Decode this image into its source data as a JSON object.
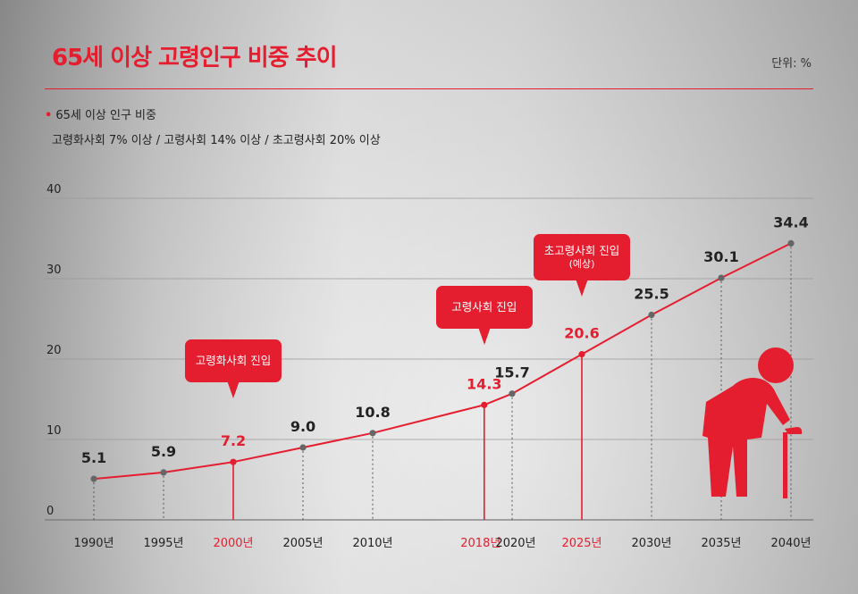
{
  "header": {
    "title": "65세 이상 고령인구 비중 추이",
    "unit": "단위: %"
  },
  "legend": {
    "bullet": "•",
    "label": "65세 이상 인구 비중",
    "note": "고령화사회 7% 이상 / 고령사회 14% 이상 / 초고령사회 20% 이상"
  },
  "callouts": [
    {
      "title": "고령화사회 진입",
      "note": ""
    },
    {
      "title": "고령사회 진입",
      "note": ""
    },
    {
      "title": "초고령사회 진입",
      "note": "(예상)"
    }
  ],
  "colors": {
    "accent": "#e41e2f",
    "line": "#e41e2f",
    "point": "#666666",
    "grid": "#999999"
  },
  "illustration": "elderly-person-with-cane-icon",
  "chart_data": {
    "type": "line",
    "title": "65세 이상 고령인구 비중 추이",
    "ylabel": "",
    "xlabel": "",
    "unit": "%",
    "ylim": [
      0,
      40
    ],
    "yticks": [
      0,
      10,
      20,
      30,
      40
    ],
    "grid": true,
    "series": [
      {
        "name": "65세 이상 인구 비중",
        "points": [
          {
            "x": "1990년",
            "year": 1990,
            "y": 5.1,
            "label": "5.1",
            "highlight": false
          },
          {
            "x": "1995년",
            "year": 1995,
            "y": 5.9,
            "label": "5.9",
            "highlight": false
          },
          {
            "x": "2000년",
            "year": 2000,
            "y": 7.2,
            "label": "7.2",
            "highlight": true
          },
          {
            "x": "2005년",
            "year": 2005,
            "y": 9.0,
            "label": "9.0",
            "highlight": false
          },
          {
            "x": "2010년",
            "year": 2010,
            "y": 10.8,
            "label": "10.8",
            "highlight": false
          },
          {
            "x": "2018년",
            "year": 2018,
            "y": 14.3,
            "label": "14.3",
            "highlight": true
          },
          {
            "x": "2020년",
            "year": 2020,
            "y": 15.7,
            "label": "15.7",
            "highlight": false
          },
          {
            "x": "2025년",
            "year": 2025,
            "y": 20.6,
            "label": "20.6",
            "highlight": true
          },
          {
            "x": "2030년",
            "year": 2030,
            "y": 25.5,
            "label": "25.5",
            "highlight": false
          },
          {
            "x": "2035년",
            "year": 2035,
            "y": 30.1,
            "label": "30.1",
            "highlight": false
          },
          {
            "x": "2040년",
            "year": 2040,
            "y": 34.4,
            "label": "34.4",
            "highlight": false
          }
        ]
      }
    ]
  }
}
